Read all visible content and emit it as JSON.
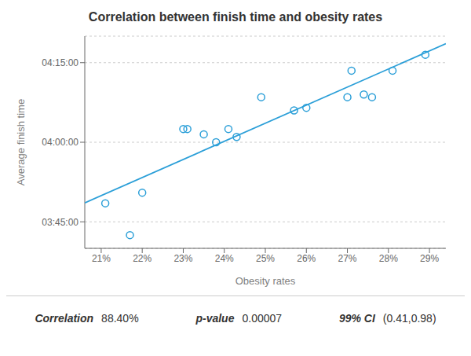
{
  "chart_data": {
    "type": "scatter",
    "title": "Correlation between finish time and obesity rates",
    "x_label": "Obesity rates",
    "y_label": "Average finish time",
    "xlim": [
      20.6,
      29.4
    ],
    "ylim": [
      220,
      260
    ],
    "xticks": [
      {
        "value": 21,
        "label": "21%"
      },
      {
        "value": 22,
        "label": "22%"
      },
      {
        "value": 23,
        "label": "23%"
      },
      {
        "value": 24,
        "label": "24%"
      },
      {
        "value": 25,
        "label": "25%"
      },
      {
        "value": 26,
        "label": "26%"
      },
      {
        "value": 27,
        "label": "27%"
      },
      {
        "value": 28,
        "label": "28%"
      },
      {
        "value": 29,
        "label": "29%"
      }
    ],
    "yticks": [
      {
        "value": 225,
        "label": "03:45:00"
      },
      {
        "value": 240,
        "label": "04:00:00"
      },
      {
        "value": 255,
        "label": "04:15:00"
      }
    ],
    "grid": "y",
    "series": [
      {
        "type": "scatter",
        "marker": "circle",
        "color": "#2b9fd8",
        "x": [
          21.1,
          21.7,
          22.0,
          23.0,
          23.1,
          23.5,
          23.8,
          24.1,
          24.3,
          24.9,
          25.7,
          26.0,
          27.0,
          27.1,
          27.4,
          27.6,
          28.1,
          28.9
        ],
        "values": [
          228.5,
          222.5,
          230.5,
          242.5,
          242.5,
          241.5,
          240.0,
          242.5,
          241.0,
          248.5,
          246.0,
          246.5,
          248.5,
          253.5,
          249.0,
          248.5,
          253.5,
          256.5
        ]
      },
      {
        "type": "line",
        "color": "#2b9fd8",
        "x": [
          20.6,
          29.4
        ],
        "values": [
          228.574,
          258.58
        ]
      }
    ],
    "annotations": [
      {
        "label": "Correlation",
        "text": "88.40%"
      },
      {
        "label": "p-value",
        "text": "0.00007"
      },
      {
        "label": "99% CI",
        "text": "(0.41,0.98)"
      }
    ]
  }
}
